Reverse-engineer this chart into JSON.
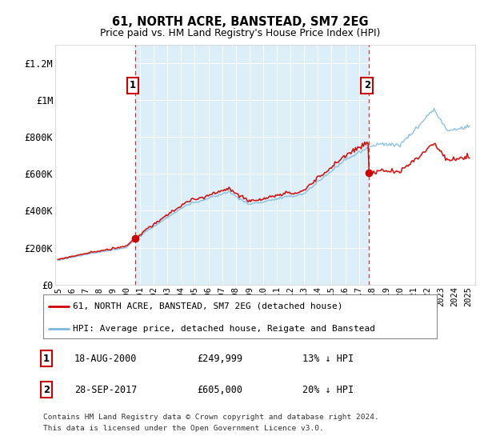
{
  "title": "61, NORTH ACRE, BANSTEAD, SM7 2EG",
  "subtitle": "Price paid vs. HM Land Registry's House Price Index (HPI)",
  "ylim": [
    0,
    1300000
  ],
  "yticks": [
    0,
    200000,
    400000,
    600000,
    800000,
    1000000,
    1200000
  ],
  "ytick_labels": [
    "£0",
    "£200K",
    "£400K",
    "£600K",
    "£800K",
    "£1M",
    "£1.2M"
  ],
  "background_color": "#ffffff",
  "plot_bg_color": "#ffffff",
  "hpi_color": "#7ab8d9",
  "price_color": "#cc0000",
  "shade_color": "#dceef7",
  "sale1_year": 2000.625,
  "sale1_price": 249999,
  "sale2_year": 2017.747,
  "sale2_price": 605000,
  "legend_label1": "61, NORTH ACRE, BANSTEAD, SM7 2EG (detached house)",
  "legend_label2": "HPI: Average price, detached house, Reigate and Banstead",
  "annotation1_date": "18-AUG-2000",
  "annotation1_price": "£249,999",
  "annotation1_pct": "13% ↓ HPI",
  "annotation2_date": "28-SEP-2017",
  "annotation2_price": "£605,000",
  "annotation2_pct": "20% ↓ HPI",
  "footer1": "Contains HM Land Registry data © Crown copyright and database right 2024.",
  "footer2": "This data is licensed under the Open Government Licence v3.0.",
  "xmin": 1994.8,
  "xmax": 2025.5
}
